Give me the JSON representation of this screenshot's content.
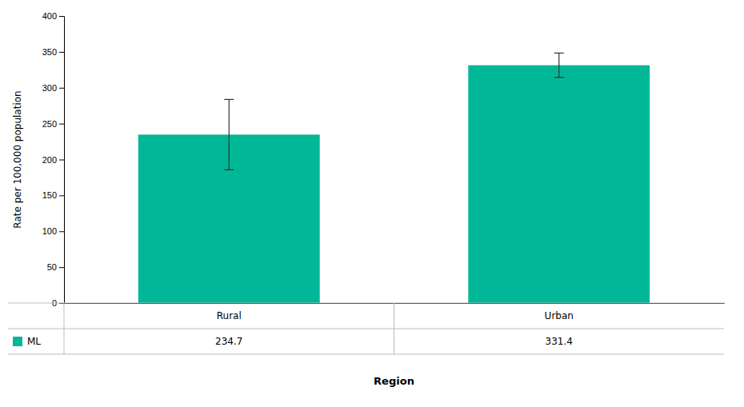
{
  "chart_data": {
    "type": "bar",
    "categories": [
      "Rural",
      "Urban"
    ],
    "series": [
      {
        "name": "ML",
        "color": "#00B897",
        "values": [
          234.7,
          331.4
        ],
        "errors": [
          49.0,
          17.0
        ]
      }
    ],
    "ylabel": "Rate per 100,000 population",
    "xlabel": "Region",
    "ylim": [
      0,
      400
    ],
    "yticks": [
      0,
      50,
      100,
      150,
      200,
      250,
      300,
      350,
      400
    ],
    "grid": false
  }
}
